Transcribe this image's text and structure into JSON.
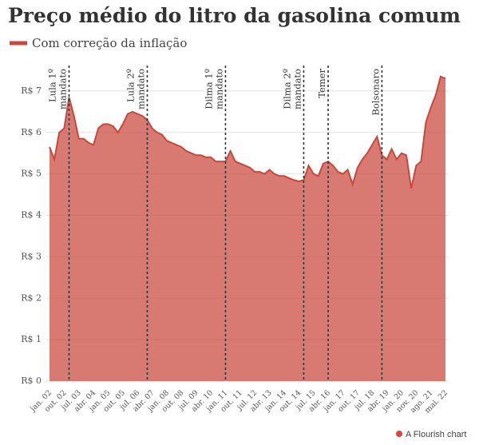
{
  "chart_data": {
    "type": "area",
    "title": "Preço médio do litro da gasolina comum",
    "categories": [
      "jan. 02",
      null,
      null,
      "out. 02",
      null,
      null,
      "jul. 03",
      null,
      null,
      "abr. 04",
      null,
      null,
      "jan. 05",
      null,
      null,
      "out. 05",
      null,
      null,
      "jul. 06",
      null,
      null,
      "abr. 07",
      null,
      null,
      "jan. 08",
      null,
      null,
      "out. 08",
      null,
      null,
      "jul. 09",
      null,
      null,
      "abr. 10",
      null,
      null,
      "jan. 11",
      null,
      null,
      "out. 11",
      null,
      null,
      "jul. 12",
      null,
      null,
      "abr. 13",
      null,
      null,
      "jan. 14",
      null,
      null,
      "out. 14",
      null,
      null,
      "jul. 15",
      null,
      null,
      "abr. 16",
      null,
      null,
      "jan. 17",
      null,
      null,
      "out. 17",
      null,
      null,
      "jul. 18",
      null,
      null,
      "abr. 19",
      null,
      null,
      "jan. 20",
      null,
      null,
      "nov. 20",
      null,
      null,
      "ago. 21",
      null,
      null,
      "mai. 22"
    ],
    "series": [
      {
        "name": "Com correção da inflação",
        "color": "#c9473c",
        "values": [
          5.65,
          5.35,
          6.0,
          6.1,
          6.85,
          6.4,
          5.85,
          5.85,
          5.75,
          5.7,
          6.1,
          6.2,
          6.2,
          6.15,
          6.0,
          6.2,
          6.45,
          6.5,
          6.45,
          6.4,
          6.3,
          6.1,
          6.0,
          5.95,
          5.8,
          5.75,
          5.7,
          5.65,
          5.55,
          5.5,
          5.45,
          5.45,
          5.4,
          5.4,
          5.3,
          5.3,
          5.3,
          5.55,
          5.3,
          5.25,
          5.2,
          5.15,
          5.05,
          5.05,
          5.0,
          5.1,
          5.0,
          4.95,
          4.95,
          4.9,
          4.85,
          4.82,
          4.85,
          5.2,
          5.0,
          4.95,
          5.25,
          5.3,
          5.2,
          5.05,
          5.0,
          5.1,
          4.75,
          5.15,
          5.35,
          5.5,
          5.7,
          5.9,
          5.45,
          5.35,
          5.6,
          5.35,
          5.5,
          5.45,
          4.65,
          5.2,
          5.3,
          6.25,
          6.6,
          6.9,
          7.35,
          7.3
        ]
      }
    ],
    "ylim": [
      0,
      7.5
    ],
    "yticks": [
      {
        "value": 0,
        "label": "R$ 0"
      },
      {
        "value": 1,
        "label": "R$ 1"
      },
      {
        "value": 2,
        "label": "R$ 2"
      },
      {
        "value": 3,
        "label": "R$ 3"
      },
      {
        "value": 4,
        "label": "R$ 4"
      },
      {
        "value": 5,
        "label": "R$ 5"
      },
      {
        "value": 6,
        "label": "R$ 6"
      },
      {
        "value": 7,
        "label": "R$ 7"
      }
    ],
    "grid": true,
    "annotations": [
      {
        "x": 4,
        "lines": [
          "Lula 1º",
          "mandato"
        ]
      },
      {
        "x": 20,
        "lines": [
          "Lula 2º",
          "mandato"
        ]
      },
      {
        "x": 36,
        "lines": [
          "Dilma 1º",
          "mandato"
        ]
      },
      {
        "x": 52,
        "lines": [
          "Dilma 2º",
          "mandato"
        ]
      },
      {
        "x": 57,
        "lines": [
          "Temer"
        ]
      },
      {
        "x": 68,
        "lines": [
          "Bolsonaro"
        ]
      }
    ]
  },
  "footer": "A Flourish chart"
}
